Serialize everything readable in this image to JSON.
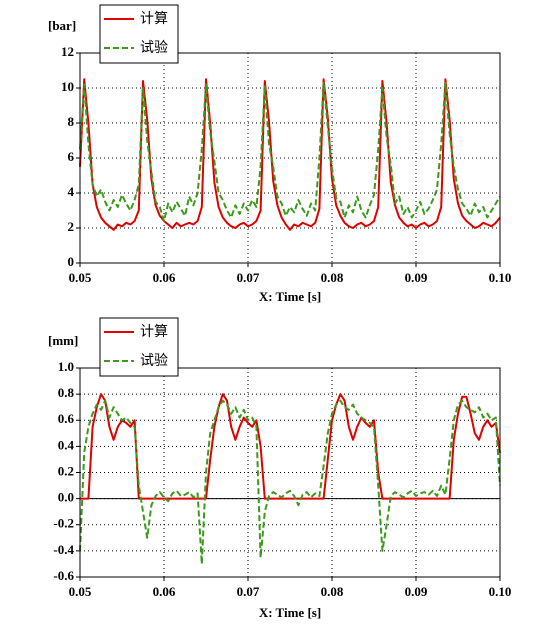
{
  "chart_data": [
    {
      "type": "line",
      "y_label": "[bar]",
      "x_label": "X: Time [s]",
      "grid": true,
      "xlim": [
        0.05,
        0.1
      ],
      "xticks": [
        0.05,
        0.06,
        0.07,
        0.08,
        0.09,
        {
          "value": 0.1,
          "label": "0.10"
        }
      ],
      "ylim": [
        0,
        12
      ],
      "yticks": [
        0,
        2,
        4,
        6,
        8,
        10,
        12
      ],
      "x": [
        0.05,
        0.0505,
        0.051,
        0.0515,
        0.052,
        0.0525,
        0.053,
        0.0535,
        0.054,
        0.0545,
        0.055,
        0.0555,
        0.056,
        0.0565,
        0.057,
        0.0575,
        0.058,
        0.0585,
        0.059,
        0.0595,
        0.06,
        0.0605,
        0.061,
        0.0615,
        0.062,
        0.0625,
        0.063,
        0.0635,
        0.064,
        0.0645,
        0.065,
        0.0655,
        0.066,
        0.0665,
        0.067,
        0.0675,
        0.068,
        0.0685,
        0.069,
        0.0695,
        0.07,
        0.0705,
        0.071,
        0.0715,
        0.072,
        0.0725,
        0.073,
        0.0735,
        0.074,
        0.0745,
        0.075,
        0.0755,
        0.076,
        0.0765,
        0.077,
        0.0775,
        0.078,
        0.0785,
        0.079,
        0.0795,
        0.08,
        0.0805,
        0.081,
        0.0815,
        0.082,
        0.0825,
        0.083,
        0.0835,
        0.084,
        0.0845,
        0.085,
        0.0855,
        0.086,
        0.0865,
        0.087,
        0.0875,
        0.088,
        0.0885,
        0.089,
        0.0895,
        0.09,
        0.0905,
        0.091,
        0.0915,
        0.092,
        0.0925,
        0.093,
        0.0935,
        0.094,
        0.0945,
        0.095,
        0.0955,
        0.096,
        0.0965,
        0.097,
        0.0975,
        0.098,
        0.0985,
        0.099,
        0.0995,
        0.1
      ],
      "series": [
        {
          "name": "计算",
          "color": "#e00000",
          "dash": false,
          "values": [
            5.5,
            10.5,
            8,
            4.5,
            3.2,
            2.6,
            2.3,
            2.1,
            1.9,
            2.2,
            2.1,
            2.3,
            2.2,
            2.4,
            3.0,
            10.4,
            8.2,
            4.8,
            3.3,
            2.7,
            2.4,
            2.2,
            2.0,
            2.3,
            2.1,
            2.2,
            2.3,
            2.2,
            2.4,
            3.2,
            10.5,
            8,
            4.6,
            3.2,
            2.6,
            2.3,
            2.1,
            2.0,
            2.2,
            2.3,
            2.1,
            2.2,
            2.4,
            3.0,
            10.4,
            8.1,
            4.7,
            3.3,
            2.6,
            2.2,
            1.9,
            2.2,
            2.1,
            2.3,
            2.2,
            2.1,
            2.3,
            3.1,
            10.5,
            8.3,
            4.8,
            3.3,
            2.7,
            2.3,
            2.1,
            2.0,
            2.2,
            2.3,
            2.1,
            2.2,
            2.4,
            3.2,
            10.4,
            8.0,
            4.6,
            3.3,
            2.6,
            2.3,
            2.1,
            2.2,
            2.0,
            2.2,
            2.3,
            2.1,
            2.2,
            2.4,
            3.2,
            10.5,
            8.2,
            4.8,
            3.4,
            2.7,
            2.4,
            2.2,
            2.0,
            2.1,
            2.3,
            2.2,
            2.1,
            2.3,
            2.6
          ]
        },
        {
          "name": "试验",
          "color": "#3a9a1a",
          "dash": true,
          "values": [
            6.5,
            10.2,
            6.8,
            4.5,
            3.8,
            4.2,
            3.5,
            3.0,
            3.6,
            3.2,
            3.9,
            3.4,
            3.0,
            3.6,
            4.5,
            10.0,
            7.0,
            5.2,
            3.5,
            3.2,
            2.4,
            3.4,
            2.9,
            3.5,
            3.1,
            2.7,
            3.8,
            3.3,
            4.0,
            6.5,
            10.2,
            7.5,
            5.8,
            4.0,
            3.6,
            3.0,
            2.6,
            3.3,
            2.8,
            3.4,
            3.0,
            3.6,
            3.2,
            5.5,
            10.1,
            6.8,
            5.5,
            3.8,
            3.4,
            2.7,
            3.2,
            2.9,
            3.6,
            3.1,
            2.7,
            3.4,
            3.0,
            6.0,
            10.3,
            7.8,
            5.4,
            3.7,
            3.5,
            2.6,
            3.3,
            2.9,
            3.8,
            3.0,
            2.6,
            3.3,
            3.9,
            6.5,
            10.0,
            7.2,
            5.6,
            3.4,
            3.8,
            2.8,
            3.2,
            2.6,
            3.0,
            3.5,
            2.8,
            3.1,
            3.6,
            4.2,
            6.8,
            10.3,
            7.4,
            5.5,
            4.2,
            3.4,
            3.1,
            2.7,
            3.4,
            2.9,
            3.2,
            2.6,
            3.0,
            3.4,
            3.8
          ]
        }
      ]
    },
    {
      "type": "line",
      "y_label": "[mm]",
      "x_label": "X: Time [s]",
      "grid": true,
      "zero_line": true,
      "xlim": [
        0.05,
        0.1
      ],
      "xticks": [
        0.05,
        0.06,
        0.07,
        0.08,
        0.09,
        {
          "value": 0.1,
          "label": "0.10"
        }
      ],
      "ylim": [
        -0.6,
        1
      ],
      "yticks": [
        -0.6,
        -0.4,
        -0.2,
        {
          "value": 0,
          "label": "0.0"
        },
        0.2,
        0.4,
        0.6,
        0.8,
        {
          "value": 1,
          "label": "1.0"
        }
      ],
      "x": [
        0.05,
        0.0505,
        0.051,
        0.0515,
        0.052,
        0.0525,
        0.053,
        0.0535,
        0.054,
        0.0545,
        0.055,
        0.0555,
        0.056,
        0.0565,
        0.057,
        0.0575,
        0.058,
        0.0585,
        0.059,
        0.0595,
        0.06,
        0.0605,
        0.061,
        0.0615,
        0.062,
        0.0625,
        0.063,
        0.0635,
        0.064,
        0.0645,
        0.065,
        0.0655,
        0.066,
        0.0665,
        0.067,
        0.0675,
        0.068,
        0.0685,
        0.069,
        0.0695,
        0.07,
        0.0705,
        0.071,
        0.0715,
        0.072,
        0.0725,
        0.073,
        0.0735,
        0.074,
        0.0745,
        0.075,
        0.0755,
        0.076,
        0.0765,
        0.077,
        0.0775,
        0.078,
        0.0785,
        0.079,
        0.0795,
        0.08,
        0.0805,
        0.081,
        0.0815,
        0.082,
        0.0825,
        0.083,
        0.0835,
        0.084,
        0.0845,
        0.085,
        0.0855,
        0.086,
        0.0865,
        0.087,
        0.0875,
        0.088,
        0.0885,
        0.089,
        0.0895,
        0.09,
        0.0905,
        0.091,
        0.0915,
        0.092,
        0.0925,
        0.093,
        0.0935,
        0.094,
        0.0945,
        0.095,
        0.0955,
        0.096,
        0.0965,
        0.097,
        0.0975,
        0.098,
        0.0985,
        0.099,
        0.0995,
        0.1
      ],
      "series": [
        {
          "name": "计算",
          "color": "#e00000",
          "dash": false,
          "values": [
            0,
            0,
            0,
            0.55,
            0.7,
            0.8,
            0.75,
            0.55,
            0.45,
            0.55,
            0.6,
            0.58,
            0.55,
            0.6,
            0,
            0,
            0,
            0,
            0,
            0,
            0,
            0,
            0,
            0,
            0,
            0,
            0,
            0,
            0,
            0,
            0,
            0.3,
            0.55,
            0.7,
            0.8,
            0.75,
            0.55,
            0.45,
            0.55,
            0.62,
            0.58,
            0.55,
            0.6,
            0.4,
            0,
            0,
            0,
            0,
            0,
            0,
            0,
            0,
            0,
            0,
            0,
            0,
            0,
            0,
            0,
            0.3,
            0.6,
            0.72,
            0.8,
            0.75,
            0.55,
            0.45,
            0.55,
            0.62,
            0.58,
            0.55,
            0.6,
            0.2,
            0,
            0,
            0,
            0,
            0,
            0,
            0,
            0,
            0,
            0,
            0,
            0,
            0,
            0,
            0,
            0,
            0,
            0.45,
            0.65,
            0.78,
            0.78,
            0.65,
            0.5,
            0.45,
            0.55,
            0.6,
            0.55,
            0.58,
            0.35
          ]
        },
        {
          "name": "试验",
          "color": "#3a9a1a",
          "dash": true,
          "values": [
            -0.4,
            0.35,
            0.55,
            0.65,
            0.72,
            0.68,
            0.75,
            0.62,
            0.7,
            0.65,
            0.6,
            0.62,
            0.58,
            0.55,
            0.1,
            -0.1,
            -0.3,
            -0.05,
            0.02,
            0.05,
            0.01,
            -0.02,
            0.04,
            0.06,
            0.02,
            0.03,
            0.05,
            0.01,
            0.04,
            -0.5,
            0.2,
            0.5,
            0.6,
            0.7,
            0.75,
            0.72,
            0.65,
            0.7,
            0.62,
            0.68,
            0.6,
            0.62,
            0.55,
            -0.45,
            -0.1,
            0.02,
            0.05,
            0.03,
            0.01,
            0.04,
            0.06,
            0.02,
            -0.05,
            0.03,
            0.05,
            0.01,
            0.04,
            0.02,
            0.25,
            0.5,
            0.65,
            0.72,
            0.75,
            0.7,
            0.68,
            0.72,
            0.65,
            0.62,
            0.6,
            0.58,
            0.55,
            0.1,
            -0.4,
            -0.2,
            0.02,
            0.05,
            0.03,
            0.01,
            0.04,
            0.06,
            0.02,
            0.04,
            0.05,
            0.03,
            0.06,
            0.02,
            0.1,
            0.03,
            0.3,
            0.6,
            0.72,
            0.75,
            0.7,
            0.68,
            0.66,
            0.7,
            0.62,
            0.65,
            0.6,
            0.62,
            0.1
          ]
        }
      ]
    }
  ]
}
